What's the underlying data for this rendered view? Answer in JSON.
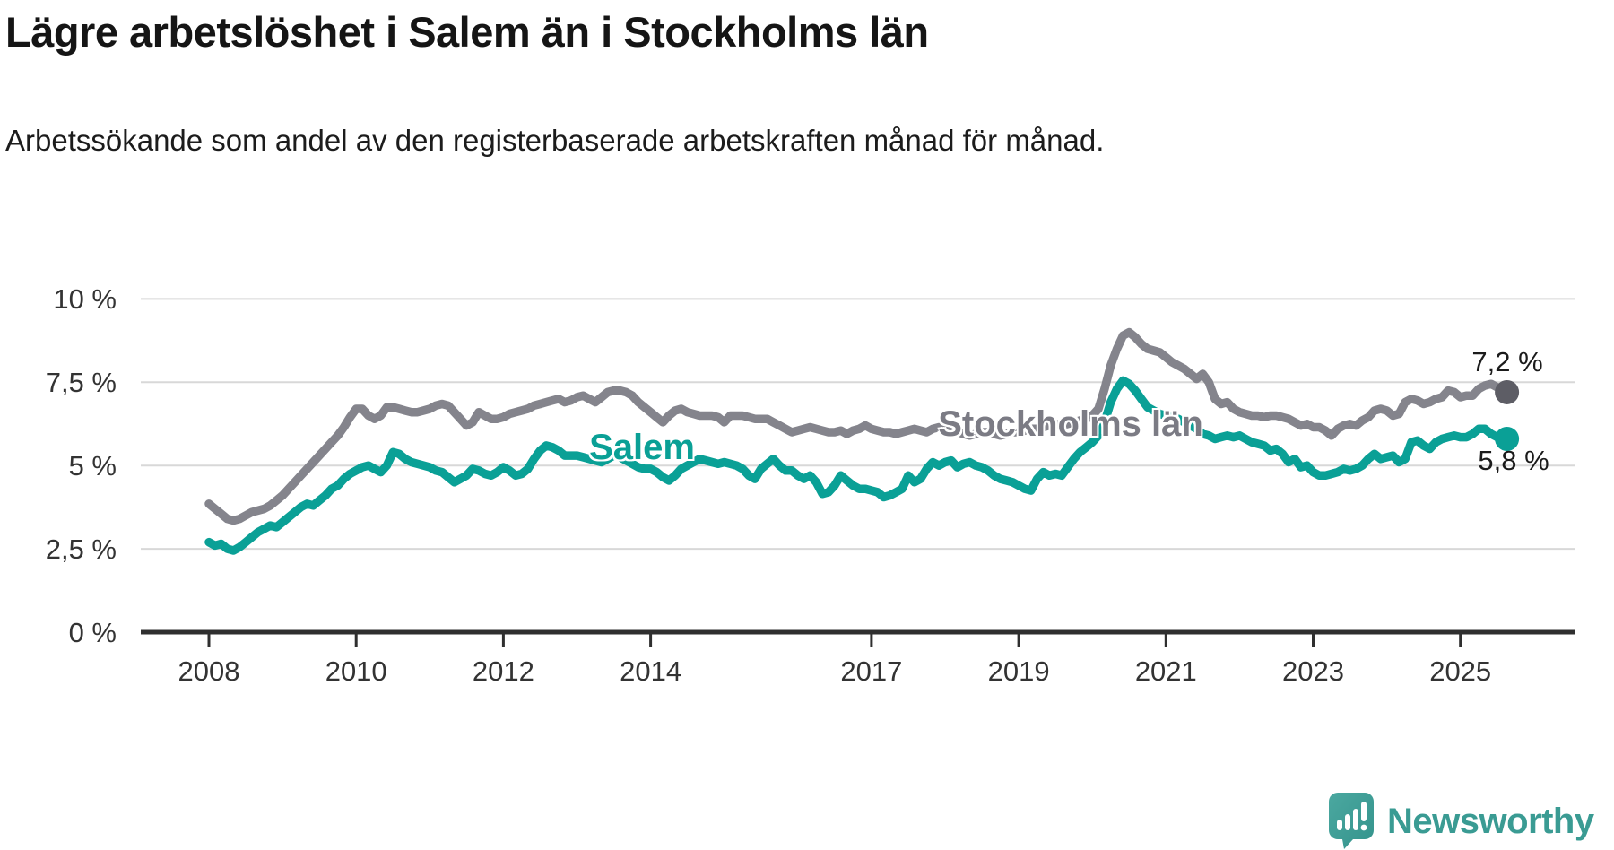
{
  "title": "Lägre arbetslöshet i Salem än i Stockholms län",
  "subtitle": "Arbetssökande som andel av den registerbaserade arbetskraften månad för månad.",
  "footer": {
    "brand": "Newsworthy",
    "brand_color": "#3A9B93"
  },
  "chart_data": {
    "type": "line",
    "title": "Lägre arbetslöshet i Salem än i Stockholms län",
    "ylabel": "",
    "xlabel": "",
    "unit": "%",
    "ylim": [
      0,
      10
    ],
    "grid": true,
    "x_start_year": 2008,
    "points_per_year": 12,
    "last_point": "2025-08",
    "x_tick_years": [
      2008,
      2010,
      2012,
      2014,
      2017,
      2019,
      2021,
      2023,
      2025
    ],
    "x_tick_labels": [
      "2008",
      "2010",
      "2012",
      "2014",
      "2017",
      "2019",
      "2021",
      "2023",
      "2025"
    ],
    "y_ticks": [
      {
        "value": 10,
        "label": "10 %"
      },
      {
        "value": 7.5,
        "label": "7,5 %"
      },
      {
        "value": 5,
        "label": "5 %"
      },
      {
        "value": 2.5,
        "label": "2,5 %"
      },
      {
        "value": 0,
        "label": "0 %"
      }
    ],
    "axis_color": "#2f2f2f",
    "grid_color": "#d8d8d8",
    "series": [
      {
        "name": "Stockholms län",
        "color": "#84848C",
        "label_color": "#7B7B84",
        "dot_color": "#5D5D65",
        "end_label": "7,2 %",
        "end_value": 7.2,
        "values": [
          3.85,
          3.7,
          3.55,
          3.4,
          3.35,
          3.4,
          3.5,
          3.6,
          3.65,
          3.7,
          3.8,
          3.95,
          4.1,
          4.3,
          4.5,
          4.7,
          4.9,
          5.1,
          5.3,
          5.5,
          5.7,
          5.9,
          6.15,
          6.45,
          6.7,
          6.7,
          6.5,
          6.4,
          6.5,
          6.75,
          6.75,
          6.7,
          6.65,
          6.6,
          6.6,
          6.65,
          6.7,
          6.8,
          6.85,
          6.8,
          6.6,
          6.4,
          6.2,
          6.3,
          6.6,
          6.5,
          6.4,
          6.4,
          6.45,
          6.55,
          6.6,
          6.65,
          6.7,
          6.8,
          6.85,
          6.9,
          6.95,
          7.0,
          6.9,
          6.95,
          7.05,
          7.1,
          7.0,
          6.9,
          7.05,
          7.2,
          7.25,
          7.25,
          7.2,
          7.1,
          6.9,
          6.75,
          6.6,
          6.45,
          6.3,
          6.5,
          6.65,
          6.7,
          6.6,
          6.55,
          6.5,
          6.5,
          6.5,
          6.45,
          6.3,
          6.5,
          6.5,
          6.5,
          6.45,
          6.4,
          6.4,
          6.4,
          6.3,
          6.2,
          6.1,
          6.0,
          6.05,
          6.1,
          6.15,
          6.1,
          6.05,
          6.0,
          6.0,
          6.05,
          5.95,
          6.05,
          6.1,
          6.2,
          6.1,
          6.05,
          6.0,
          6.0,
          5.95,
          6.0,
          6.05,
          6.1,
          6.05,
          6.0,
          6.1,
          6.15,
          6.1,
          6.05,
          6.0,
          5.95,
          5.9,
          5.95,
          6.0,
          6.0,
          5.95,
          5.9,
          5.95,
          6.0,
          6.0,
          6.05,
          6.1,
          6.1,
          6.15,
          6.2,
          6.25,
          6.2,
          6.25,
          6.3,
          6.35,
          6.4,
          6.5,
          6.7,
          7.3,
          8.0,
          8.5,
          8.9,
          9.0,
          8.85,
          8.65,
          8.5,
          8.45,
          8.4,
          8.25,
          8.1,
          8.0,
          7.9,
          7.75,
          7.6,
          7.75,
          7.5,
          7.0,
          6.85,
          6.9,
          6.7,
          6.6,
          6.55,
          6.5,
          6.5,
          6.45,
          6.5,
          6.5,
          6.45,
          6.4,
          6.3,
          6.2,
          6.25,
          6.15,
          6.15,
          6.05,
          5.9,
          6.1,
          6.2,
          6.25,
          6.2,
          6.35,
          6.45,
          6.65,
          6.7,
          6.65,
          6.5,
          6.55,
          6.9,
          7.0,
          6.95,
          6.85,
          6.9,
          7.0,
          7.05,
          7.25,
          7.2,
          7.05,
          7.1,
          7.1,
          7.3,
          7.4,
          7.45,
          7.35,
          7.2
        ]
      },
      {
        "name": "Salem",
        "color": "#0AA096",
        "label_color": "#0AA096",
        "dot_color": "#0AA096",
        "end_label": "5,8 %",
        "end_value": 5.8,
        "values": [
          2.7,
          2.6,
          2.65,
          2.5,
          2.45,
          2.55,
          2.7,
          2.85,
          3.0,
          3.1,
          3.2,
          3.15,
          3.3,
          3.45,
          3.6,
          3.75,
          3.85,
          3.8,
          3.95,
          4.1,
          4.3,
          4.4,
          4.6,
          4.75,
          4.85,
          4.95,
          5.0,
          4.9,
          4.8,
          5.0,
          5.4,
          5.35,
          5.2,
          5.1,
          5.05,
          5.0,
          4.95,
          4.85,
          4.8,
          4.65,
          4.5,
          4.6,
          4.7,
          4.9,
          4.85,
          4.75,
          4.7,
          4.8,
          4.95,
          4.85,
          4.7,
          4.75,
          4.9,
          5.2,
          5.45,
          5.6,
          5.55,
          5.45,
          5.3,
          5.3,
          5.3,
          5.25,
          5.2,
          5.15,
          5.1,
          5.2,
          5.3,
          5.25,
          5.15,
          5.05,
          4.95,
          4.9,
          4.9,
          4.8,
          4.65,
          4.55,
          4.7,
          4.9,
          5.0,
          5.1,
          5.2,
          5.15,
          5.1,
          5.05,
          5.1,
          5.05,
          5.0,
          4.9,
          4.7,
          4.6,
          4.9,
          5.05,
          5.2,
          5.0,
          4.85,
          4.85,
          4.7,
          4.6,
          4.7,
          4.5,
          4.15,
          4.2,
          4.4,
          4.7,
          4.55,
          4.4,
          4.3,
          4.3,
          4.25,
          4.2,
          4.05,
          4.1,
          4.2,
          4.3,
          4.7,
          4.5,
          4.6,
          4.9,
          5.1,
          5.0,
          5.1,
          5.15,
          4.95,
          5.05,
          5.1,
          5.0,
          4.95,
          4.85,
          4.7,
          4.6,
          4.55,
          4.5,
          4.4,
          4.3,
          4.25,
          4.6,
          4.8,
          4.7,
          4.75,
          4.7,
          4.95,
          5.2,
          5.4,
          5.55,
          5.7,
          5.9,
          6.3,
          6.9,
          7.3,
          7.55,
          7.45,
          7.25,
          7.0,
          6.75,
          6.65,
          6.55,
          6.5,
          6.45,
          6.4,
          6.3,
          6.2,
          6.1,
          5.95,
          5.9,
          5.8,
          5.85,
          5.9,
          5.85,
          5.9,
          5.8,
          5.7,
          5.65,
          5.6,
          5.45,
          5.5,
          5.35,
          5.1,
          5.2,
          4.95,
          5.0,
          4.8,
          4.7,
          4.7,
          4.75,
          4.8,
          4.9,
          4.85,
          4.9,
          5.0,
          5.2,
          5.35,
          5.2,
          5.25,
          5.3,
          5.1,
          5.2,
          5.7,
          5.75,
          5.6,
          5.5,
          5.7,
          5.8,
          5.85,
          5.9,
          5.85,
          5.85,
          5.95,
          6.1,
          6.1,
          5.95,
          5.85,
          5.8
        ]
      }
    ]
  }
}
